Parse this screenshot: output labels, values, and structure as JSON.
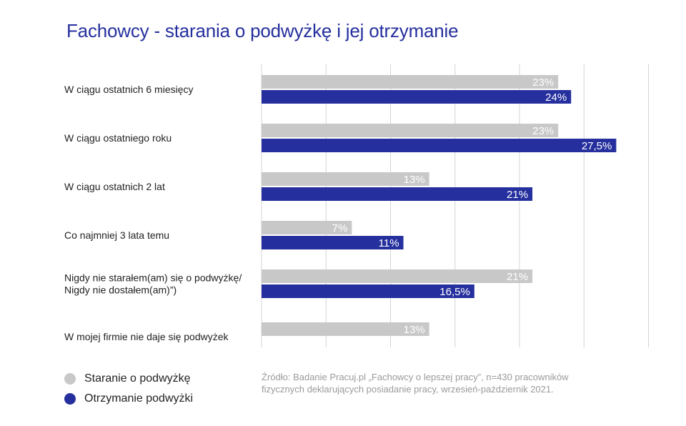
{
  "title": "Fachowcy - starania o podwyżkę i jej otrzymanie",
  "source": "Źródło: Badanie Pracuj.pl „Fachowcy o lepszej pracy”, n=430 pracowników fizycznych deklarujących posiadanie pracy, wrzesień-październik 2021.",
  "colors": {
    "gray": "#c8c8c8",
    "blue": "#25309e"
  },
  "chart_data": {
    "type": "bar",
    "orientation": "horizontal",
    "categories": [
      "W ciągu ostatnich 6 miesięcy",
      "W ciągu ostatniego roku",
      "W ciągu ostatnich 2 lat",
      "Co najmniej 3 lata temu",
      "Nigdy nie starałem(am) się o podwyżkę/ Nigdy nie dostałem(am)”)",
      "W mojej firmie nie daje się podwyżek"
    ],
    "series": [
      {
        "name": "Staranie o podwyżkę",
        "color": "#c8c8c8",
        "values": [
          23,
          23,
          13,
          7,
          21,
          13
        ],
        "labels": [
          "23%",
          "23%",
          "13%",
          "7%",
          "21%",
          "13%"
        ]
      },
      {
        "name": "Otrzymanie podwyżki",
        "color": "#25309e",
        "values": [
          24,
          27.5,
          21,
          11,
          16.5,
          null
        ],
        "labels": [
          "24%",
          "27,5%",
          "21%",
          "11%",
          "16,5%",
          null
        ]
      }
    ],
    "xlim": [
      0,
      30
    ],
    "grid": true,
    "legend": "bottom-left"
  }
}
